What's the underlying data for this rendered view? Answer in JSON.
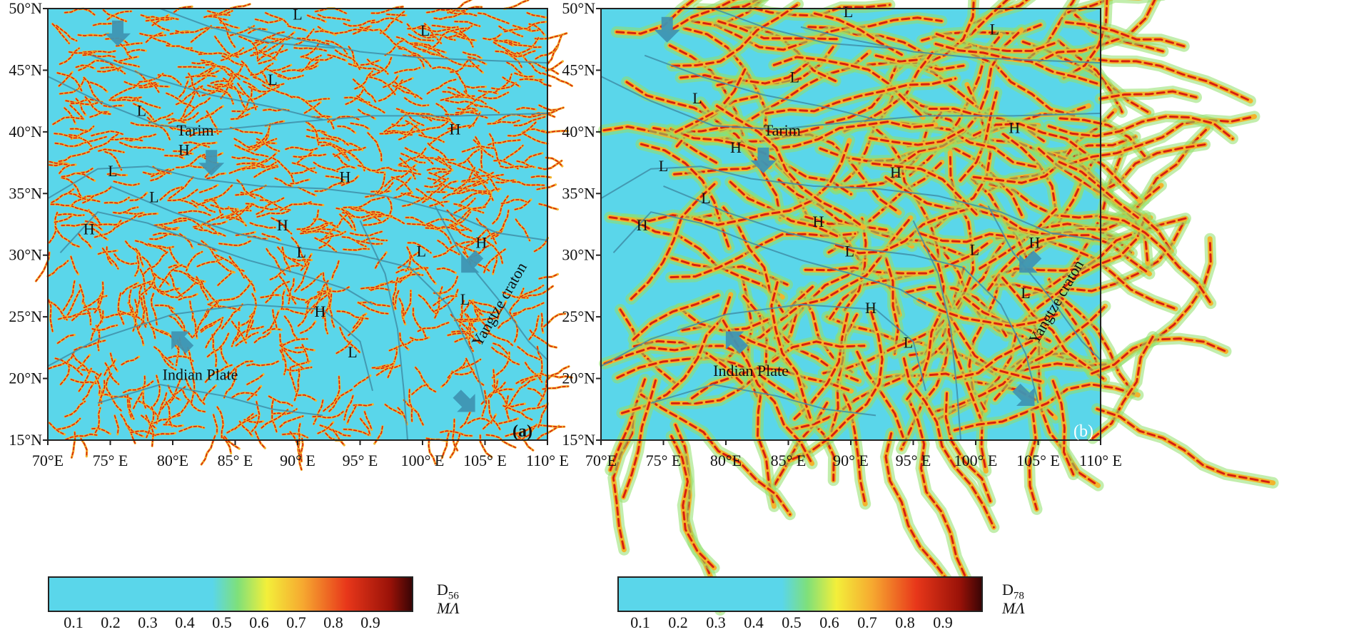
{
  "axes": {
    "lat_labels": [
      "50°N",
      "45°N",
      "40°N",
      "35°N",
      "30°N",
      "25°N",
      "20°N",
      "15°N"
    ],
    "lon_labels": [
      "70°E",
      "75° E",
      "80°E",
      "85° E",
      "90° E",
      "95° E",
      "100° E",
      "105° E",
      "110° E"
    ],
    "lat_range": [
      15,
      50
    ],
    "lon_range": [
      70,
      110
    ]
  },
  "panels": [
    {
      "tag": "(a)",
      "lineament_density": "dense",
      "labels": [
        {
          "text": "L",
          "lon": 90.0,
          "lat": 49.1
        },
        {
          "text": "L",
          "lon": 100.2,
          "lat": 47.8
        },
        {
          "text": "L",
          "lon": 88.0,
          "lat": 43.8
        },
        {
          "text": "L",
          "lon": 77.5,
          "lat": 41.3
        },
        {
          "text": "Tarim",
          "lon": 81.8,
          "lat": 39.7
        },
        {
          "text": "H",
          "lon": 102.6,
          "lat": 39.8
        },
        {
          "text": "H",
          "lon": 80.9,
          "lat": 38.1
        },
        {
          "text": "L",
          "lon": 75.2,
          "lat": 36.4
        },
        {
          "text": "H",
          "lon": 93.8,
          "lat": 35.9
        },
        {
          "text": "L",
          "lon": 78.5,
          "lat": 34.3
        },
        {
          "text": "H",
          "lon": 73.3,
          "lat": 31.7
        },
        {
          "text": "H",
          "lon": 88.8,
          "lat": 32.0
        },
        {
          "text": "L",
          "lon": 90.3,
          "lat": 29.8
        },
        {
          "text": "L",
          "lon": 99.9,
          "lat": 29.9
        },
        {
          "text": "H",
          "lon": 104.7,
          "lat": 30.6
        },
        {
          "text": "L",
          "lon": 103.4,
          "lat": 26.0
        },
        {
          "text": "H",
          "lon": 91.8,
          "lat": 25.0
        },
        {
          "text": "L",
          "lon": 94.4,
          "lat": 21.7
        },
        {
          "text": "Indian Plate",
          "lon": 82.2,
          "lat": 19.9
        }
      ],
      "rotated_label": "Yangtze craton",
      "arrows": [
        {
          "lon": 75.6,
          "lat": 48.1,
          "dir": "down"
        },
        {
          "lon": 83.1,
          "lat": 37.6,
          "dir": "down"
        },
        {
          "lon": 103.9,
          "lat": 29.4,
          "dir": "down-left"
        },
        {
          "lon": 80.7,
          "lat": 23.0,
          "dir": "up-left"
        },
        {
          "lon": 103.4,
          "lat": 18.1,
          "dir": "down-right"
        }
      ],
      "colorbar": {
        "symbol": "D",
        "subscript": "56",
        "unit": "MΛ"
      }
    },
    {
      "tag": "(b)",
      "lineament_density": "sparse",
      "labels": [
        {
          "text": "L",
          "lon": 89.8,
          "lat": 49.3
        },
        {
          "text": "L",
          "lon": 101.5,
          "lat": 47.9
        },
        {
          "text": "L",
          "lon": 85.5,
          "lat": 44.0
        },
        {
          "text": "L",
          "lon": 77.7,
          "lat": 42.3
        },
        {
          "text": "Tarim",
          "lon": 84.5,
          "lat": 39.7
        },
        {
          "text": "H",
          "lon": 103.1,
          "lat": 39.9
        },
        {
          "text": "H",
          "lon": 80.8,
          "lat": 38.3
        },
        {
          "text": "L",
          "lon": 75.0,
          "lat": 36.8
        },
        {
          "text": "H",
          "lon": 93.6,
          "lat": 36.3
        },
        {
          "text": "L",
          "lon": 78.4,
          "lat": 34.2
        },
        {
          "text": "H",
          "lon": 73.3,
          "lat": 32.0
        },
        {
          "text": "H",
          "lon": 87.4,
          "lat": 32.3
        },
        {
          "text": "L",
          "lon": 89.9,
          "lat": 29.9
        },
        {
          "text": "L",
          "lon": 99.9,
          "lat": 30.0
        },
        {
          "text": "H",
          "lon": 104.7,
          "lat": 30.6
        },
        {
          "text": "L",
          "lon": 104.0,
          "lat": 26.5
        },
        {
          "text": "H",
          "lon": 91.6,
          "lat": 25.3
        },
        {
          "text": "L",
          "lon": 94.6,
          "lat": 22.5
        },
        {
          "text": "Indian  Plate",
          "lon": 82.0,
          "lat": 20.2
        }
      ],
      "rotated_label": "Yangtze craton",
      "arrows": [
        {
          "lon": 75.3,
          "lat": 48.4,
          "dir": "down"
        },
        {
          "lon": 83.0,
          "lat": 37.8,
          "dir": "down"
        },
        {
          "lon": 104.3,
          "lat": 29.4,
          "dir": "down-left"
        },
        {
          "lon": 80.8,
          "lat": 23.0,
          "dir": "up-left"
        },
        {
          "lon": 103.9,
          "lat": 18.6,
          "dir": "down-right"
        }
      ],
      "colorbar": {
        "symbol": "D",
        "subscript": "78",
        "unit": "MΛ"
      }
    }
  ],
  "colorbar_ticks": [
    "0.1",
    "0.2",
    "0.3",
    "0.4",
    "0.5",
    "0.6",
    "0.7",
    "0.8",
    "0.9"
  ],
  "colors": {
    "background": "#5ad6ea",
    "fault": "#3f8ea8",
    "arrow": "#3f95b3",
    "lineament_outer": "#f2b42c",
    "lineament_inner": "#d8200e"
  }
}
